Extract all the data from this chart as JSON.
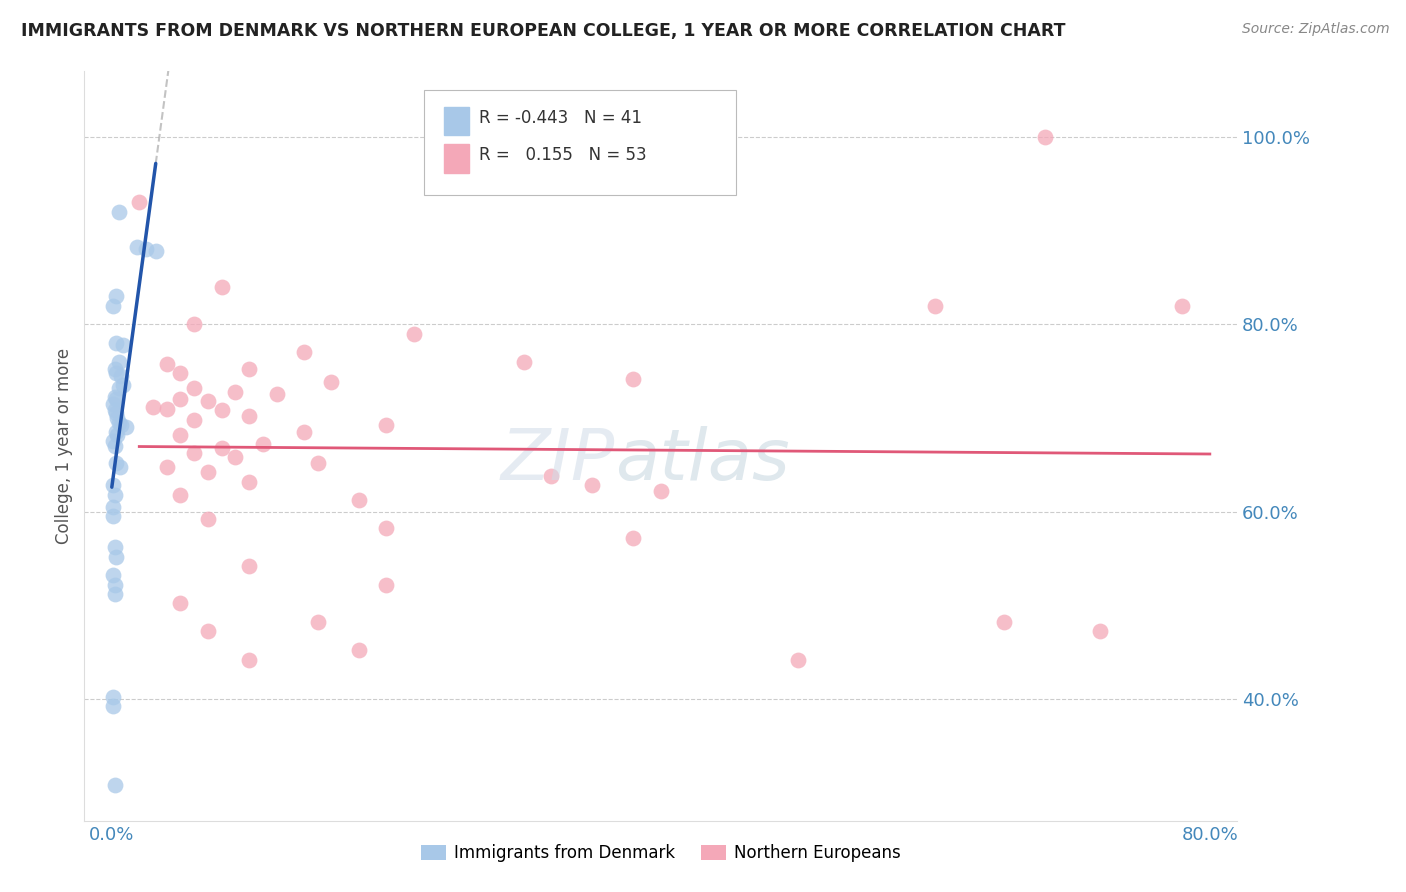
{
  "title": "IMMIGRANTS FROM DENMARK VS NORTHERN EUROPEAN COLLEGE, 1 YEAR OR MORE CORRELATION CHART",
  "source": "Source: ZipAtlas.com",
  "ylabel": "College, 1 year or more",
  "legend_label1": "Immigrants from Denmark",
  "legend_label2": "Northern Europeans",
  "R1": "-0.443",
  "N1": "41",
  "R2": "0.155",
  "N2": "53",
  "blue_color": "#a8c8e8",
  "pink_color": "#f4a8b8",
  "blue_line_color": "#2255aa",
  "pink_line_color": "#e05878",
  "blue_scatter": [
    [
      0.005,
      0.92
    ],
    [
      0.018,
      0.882
    ],
    [
      0.025,
      0.88
    ],
    [
      0.032,
      0.878
    ],
    [
      0.003,
      0.83
    ],
    [
      0.001,
      0.82
    ],
    [
      0.003,
      0.78
    ],
    [
      0.008,
      0.778
    ],
    [
      0.005,
      0.76
    ],
    [
      0.002,
      0.752
    ],
    [
      0.003,
      0.748
    ],
    [
      0.007,
      0.745
    ],
    [
      0.008,
      0.735
    ],
    [
      0.005,
      0.732
    ],
    [
      0.002,
      0.722
    ],
    [
      0.003,
      0.72
    ],
    [
      0.001,
      0.715
    ],
    [
      0.002,
      0.708
    ],
    [
      0.003,
      0.705
    ],
    [
      0.004,
      0.7
    ],
    [
      0.005,
      0.695
    ],
    [
      0.007,
      0.692
    ],
    [
      0.01,
      0.69
    ],
    [
      0.003,
      0.685
    ],
    [
      0.004,
      0.682
    ],
    [
      0.001,
      0.675
    ],
    [
      0.002,
      0.67
    ],
    [
      0.003,
      0.652
    ],
    [
      0.006,
      0.648
    ],
    [
      0.001,
      0.628
    ],
    [
      0.002,
      0.618
    ],
    [
      0.001,
      0.605
    ],
    [
      0.001,
      0.595
    ],
    [
      0.002,
      0.562
    ],
    [
      0.003,
      0.552
    ],
    [
      0.001,
      0.532
    ],
    [
      0.002,
      0.522
    ],
    [
      0.002,
      0.512
    ],
    [
      0.001,
      0.402
    ],
    [
      0.001,
      0.392
    ],
    [
      0.002,
      0.308
    ]
  ],
  "pink_scatter": [
    [
      0.68,
      1.0
    ],
    [
      0.78,
      0.82
    ],
    [
      0.02,
      0.93
    ],
    [
      0.08,
      0.84
    ],
    [
      0.06,
      0.8
    ],
    [
      0.22,
      0.79
    ],
    [
      0.14,
      0.77
    ],
    [
      0.3,
      0.76
    ],
    [
      0.04,
      0.758
    ],
    [
      0.1,
      0.752
    ],
    [
      0.05,
      0.748
    ],
    [
      0.38,
      0.742
    ],
    [
      0.16,
      0.738
    ],
    [
      0.06,
      0.732
    ],
    [
      0.09,
      0.728
    ],
    [
      0.12,
      0.725
    ],
    [
      0.05,
      0.72
    ],
    [
      0.07,
      0.718
    ],
    [
      0.03,
      0.712
    ],
    [
      0.04,
      0.71
    ],
    [
      0.08,
      0.708
    ],
    [
      0.1,
      0.702
    ],
    [
      0.06,
      0.698
    ],
    [
      0.2,
      0.692
    ],
    [
      0.14,
      0.685
    ],
    [
      0.05,
      0.682
    ],
    [
      0.11,
      0.672
    ],
    [
      0.08,
      0.668
    ],
    [
      0.06,
      0.662
    ],
    [
      0.09,
      0.658
    ],
    [
      0.15,
      0.652
    ],
    [
      0.04,
      0.648
    ],
    [
      0.07,
      0.642
    ],
    [
      0.32,
      0.638
    ],
    [
      0.1,
      0.632
    ],
    [
      0.35,
      0.628
    ],
    [
      0.4,
      0.622
    ],
    [
      0.05,
      0.618
    ],
    [
      0.18,
      0.612
    ],
    [
      0.07,
      0.592
    ],
    [
      0.2,
      0.582
    ],
    [
      0.38,
      0.572
    ],
    [
      0.1,
      0.542
    ],
    [
      0.2,
      0.522
    ],
    [
      0.05,
      0.502
    ],
    [
      0.15,
      0.482
    ],
    [
      0.07,
      0.472
    ],
    [
      0.18,
      0.452
    ],
    [
      0.65,
      0.482
    ],
    [
      0.72,
      0.472
    ],
    [
      0.1,
      0.442
    ],
    [
      0.5,
      0.442
    ],
    [
      0.6,
      0.82
    ]
  ],
  "xlim": [
    -0.02,
    0.82
  ],
  "ylim": [
    0.27,
    1.07
  ],
  "xtick_positions": [
    0.0,
    0.8
  ],
  "xtick_labels": [
    "0.0%",
    "80.0%"
  ],
  "ytick_vals": [
    0.4,
    0.6,
    0.8,
    1.0
  ],
  "ytick_labels": [
    "40.0%",
    "60.0%",
    "80.0%",
    "100.0%"
  ],
  "watermark": "ZIPatlas",
  "watermark_zip_color": "#c8d8e8",
  "watermark_atlas_color": "#c8d8e8"
}
